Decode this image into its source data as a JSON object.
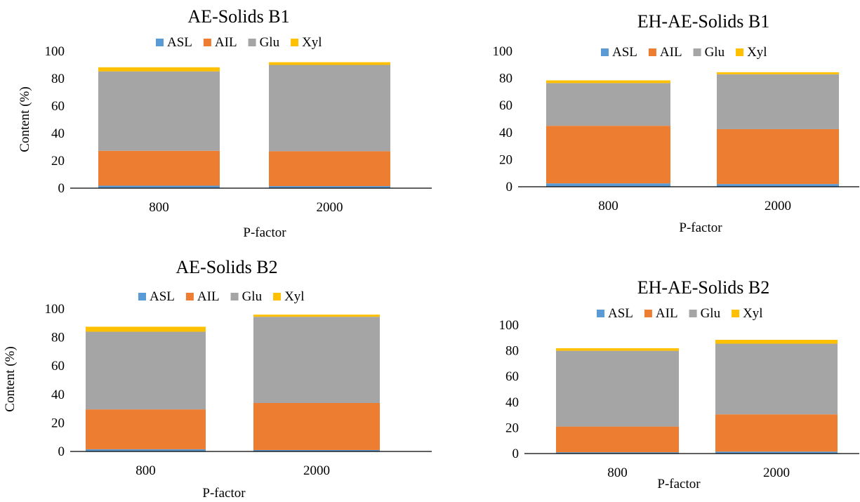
{
  "legend_labels": [
    "ASL",
    "AIL",
    "Glu",
    "Xyl"
  ],
  "series_colors": [
    "#5b9bd5",
    "#ed7d31",
    "#a5a5a5",
    "#ffc000"
  ],
  "chart_data": [
    {
      "type": "bar",
      "stacked": true,
      "title": "AE-Solids B1",
      "xlabel": "P-factor",
      "ylabel": "Content (%)",
      "ylim": [
        0,
        100
      ],
      "yticks": [
        "0",
        "20",
        "40",
        "60",
        "80",
        "100"
      ],
      "categories": [
        "800",
        "2000"
      ],
      "legend_position": "top",
      "series": [
        {
          "name": "ASL",
          "values": [
            1.8,
            1.5
          ]
        },
        {
          "name": "AIL",
          "values": [
            25.5,
            25.5
          ]
        },
        {
          "name": "Glu",
          "values": [
            58,
            63
          ]
        },
        {
          "name": "Xyl",
          "values": [
            3,
            2
          ]
        }
      ]
    },
    {
      "type": "bar",
      "stacked": true,
      "title": "EH-AE-Solids B1",
      "xlabel": "P-factor",
      "ylabel": "",
      "ylim": [
        0,
        100
      ],
      "yticks": [
        "0",
        "20",
        "40",
        "60",
        "80",
        "100"
      ],
      "categories": [
        "800",
        "2000"
      ],
      "legend_position": "top",
      "series": [
        {
          "name": "ASL",
          "values": [
            2.5,
            2
          ]
        },
        {
          "name": "AIL",
          "values": [
            42.5,
            40.5
          ]
        },
        {
          "name": "Glu",
          "values": [
            31.5,
            40.5
          ]
        },
        {
          "name": "Xyl",
          "values": [
            2,
            1.5
          ]
        }
      ]
    },
    {
      "type": "bar",
      "stacked": true,
      "title": "AE-Solids B2",
      "xlabel": "P-factor",
      "ylabel": "Content (%)",
      "ylim": [
        0,
        100
      ],
      "yticks": [
        "0",
        "20",
        "40",
        "60",
        "80",
        "100"
      ],
      "categories": [
        "800",
        "2000"
      ],
      "legend_position": "top",
      "series": [
        {
          "name": "ASL",
          "values": [
            1.5,
            1
          ]
        },
        {
          "name": "AIL",
          "values": [
            28,
            33
          ]
        },
        {
          "name": "Glu",
          "values": [
            54.5,
            60.5
          ]
        },
        {
          "name": "Xyl",
          "values": [
            3.5,
            1.5
          ]
        }
      ]
    },
    {
      "type": "bar",
      "stacked": true,
      "title": "EH-AE-Solids B2",
      "xlabel": "P-factor",
      "ylabel": "",
      "ylim": [
        0,
        100
      ],
      "yticks": [
        "0",
        "20",
        "40",
        "60",
        "80",
        "100"
      ],
      "categories": [
        "800",
        "2000"
      ],
      "legend_position": "top",
      "series": [
        {
          "name": "ASL",
          "values": [
            1,
            1.5
          ]
        },
        {
          "name": "AIL",
          "values": [
            20,
            29
          ]
        },
        {
          "name": "Glu",
          "values": [
            59,
            55
          ]
        },
        {
          "name": "Xyl",
          "values": [
            2,
            3
          ]
        }
      ]
    }
  ]
}
